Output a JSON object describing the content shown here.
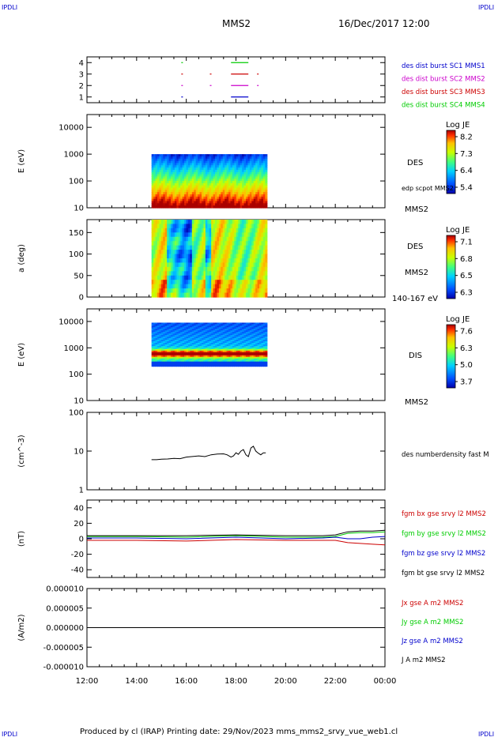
{
  "header": {
    "corner_tl": "IPDLI",
    "corner_tr": "IPDLI",
    "corner_bl": "IPDLI",
    "corner_br": "IPDLI",
    "spacecraft": "MMS2",
    "datetime": "16/Dec/2017 12:00"
  },
  "footer": {
    "text": "Produced by cl (IRAP)   Printing date: 29/Nov/2023   mms_mms2_srvy_vue_web1.cl"
  },
  "colors": {
    "blue": "#0000cc",
    "magenta": "#cc00cc",
    "red": "#cc0000",
    "green": "#00cc00",
    "black": "#000000"
  },
  "chart_data": [
    {
      "type": "line",
      "name": "burst_availability",
      "ylim": [
        0.5,
        4.5
      ],
      "y_ticks": [
        "1",
        "2",
        "3",
        "4"
      ],
      "legend": [
        {
          "label": "des dist burst SC1 MMS1",
          "color": "#0000cc"
        },
        {
          "label": "des dist burst SC2 MMS2",
          "color": "#cc00cc"
        },
        {
          "label": "des dist burst SC3 MMS3",
          "color": "#cc0000"
        },
        {
          "label": "des dist burst SC4 MMS4",
          "color": "#00cc00"
        }
      ],
      "segments_hours": [
        {
          "sc": 1,
          "color": "#0000cc",
          "spans": [
            [
              15.8,
              15.85
            ],
            [
              17.8,
              18.5
            ]
          ]
        },
        {
          "sc": 2,
          "color": "#cc00cc",
          "spans": [
            [
              15.8,
              15.85
            ],
            [
              16.95,
              17.0
            ],
            [
              17.8,
              18.5
            ],
            [
              18.85,
              18.9
            ]
          ]
        },
        {
          "sc": 3,
          "color": "#cc0000",
          "spans": [
            [
              15.8,
              15.85
            ],
            [
              16.95,
              17.0
            ],
            [
              17.8,
              18.5
            ],
            [
              18.85,
              18.9
            ]
          ]
        },
        {
          "sc": 4,
          "color": "#00cc00",
          "spans": [
            [
              15.8,
              15.85
            ],
            [
              17.8,
              18.5
            ]
          ]
        }
      ]
    },
    {
      "type": "heatmap",
      "name": "des_energy_spectrogram",
      "ylabel": "E (eV)",
      "scale": "log",
      "ylim": [
        10,
        30000
      ],
      "y_ticks": [
        "10",
        "100",
        "1000",
        "10000"
      ],
      "data_x_range_hours": [
        14.6,
        19.25
      ],
      "data_y_range": [
        10,
        1000
      ],
      "right_labels": [
        "DES",
        "edp scpot MMS2",
        "MMS2"
      ],
      "colorbar": {
        "title": "Log JE",
        "ticks": [
          "8.2",
          "7.3",
          "6.4",
          "5.4"
        ],
        "range": [
          5.4,
          8.2
        ]
      }
    },
    {
      "type": "heatmap",
      "name": "des_pitch_angle",
      "ylabel": "a (deg)",
      "ylim": [
        0,
        180
      ],
      "y_ticks": [
        "0",
        "50",
        "100",
        "150"
      ],
      "data_x_range_hours": [
        14.6,
        19.25
      ],
      "right_labels": [
        "DES",
        "MMS2",
        "140-167 eV"
      ],
      "colorbar": {
        "title": "Log JE",
        "ticks": [
          "7.1",
          "6.8",
          "6.5",
          "6.3"
        ],
        "range": [
          6.3,
          7.1
        ]
      }
    },
    {
      "type": "heatmap",
      "name": "dis_energy_spectrogram",
      "ylabel": "E (eV)",
      "scale": "log",
      "ylim": [
        10,
        30000
      ],
      "y_ticks": [
        "10",
        "100",
        "1000",
        "10000"
      ],
      "data_x_range_hours": [
        14.6,
        19.25
      ],
      "data_y_range": [
        200,
        9000
      ],
      "right_labels": [
        "DIS",
        "MMS2"
      ],
      "colorbar": {
        "title": "Log JE",
        "ticks": [
          "7.6",
          "6.3",
          "5.0",
          "3.7"
        ],
        "range": [
          3.7,
          7.6
        ]
      }
    },
    {
      "type": "line",
      "name": "density",
      "ylabel": "(cm^-3)",
      "scale": "log",
      "ylim": [
        1,
        100
      ],
      "y_ticks": [
        "1",
        "10",
        "100"
      ],
      "legend": [
        {
          "label": "des numberdensity fast M",
          "color": "#000000"
        }
      ],
      "x": [
        14.6,
        15.0,
        15.5,
        16.0,
        16.5,
        17.0,
        17.5,
        17.8,
        18.0,
        18.2,
        18.4,
        18.6,
        18.8,
        19.0,
        19.2
      ],
      "y": [
        6,
        6.2,
        6.5,
        7,
        7.5,
        8,
        8.5,
        7,
        9,
        10,
        8,
        12,
        10,
        8,
        9
      ]
    },
    {
      "type": "line",
      "name": "magnetic_field",
      "ylabel": "(nT)",
      "ylim": [
        -50,
        50
      ],
      "y_ticks": [
        "-40",
        "-20",
        "0",
        "20",
        "40"
      ],
      "legend": [
        {
          "label": "fgm bx gse srvy l2 MMS2",
          "color": "#cc0000"
        },
        {
          "label": "fgm by gse srvy l2 MMS2",
          "color": "#00cc00"
        },
        {
          "label": "fgm bz gse srvy l2 MMS2",
          "color": "#0000cc"
        },
        {
          "label": "fgm bt gse srvy l2 MMS2",
          "color": "#000000"
        }
      ],
      "x": [
        12,
        14,
        16,
        18,
        20,
        21.5,
        22,
        22.5,
        23,
        23.5,
        24
      ],
      "series": [
        {
          "color": "#cc0000",
          "values": [
            -2,
            -2,
            -3,
            -1,
            -2,
            -2,
            -2,
            -5,
            -6,
            -7,
            -8
          ]
        },
        {
          "color": "#00cc00",
          "values": [
            3,
            3,
            2,
            4,
            2,
            2,
            3,
            7,
            8,
            8,
            9
          ]
        },
        {
          "color": "#0000cc",
          "values": [
            1,
            1,
            0,
            2,
            0,
            1,
            2,
            0,
            0,
            2,
            3
          ]
        },
        {
          "color": "#000000",
          "values": [
            4,
            4,
            4,
            5,
            4,
            4,
            5,
            9,
            10,
            10,
            11
          ]
        }
      ]
    },
    {
      "type": "line",
      "name": "current_density",
      "ylabel": "(A/m2)",
      "ylim": [
        -1e-05,
        1e-05
      ],
      "y_ticks": [
        "-0.000010",
        "-0.000005",
        "0.000000",
        "0.000005",
        "0.000010"
      ],
      "legend": [
        {
          "label": "Jx gse A m2 MMS2",
          "color": "#cc0000"
        },
        {
          "label": "Jy gse A m2 MMS2",
          "color": "#00cc00"
        },
        {
          "label": "Jz gse A m2 MMS2",
          "color": "#0000cc"
        },
        {
          "label": "J A m2 MMS2",
          "color": "#000000"
        }
      ],
      "x": [
        12,
        24
      ],
      "y": [
        0,
        0
      ]
    }
  ],
  "x_axis": {
    "range_hours": [
      12,
      24
    ],
    "ticks": [
      "12:00",
      "14:00",
      "16:00",
      "18:00",
      "20:00",
      "22:00",
      "00:00"
    ]
  }
}
